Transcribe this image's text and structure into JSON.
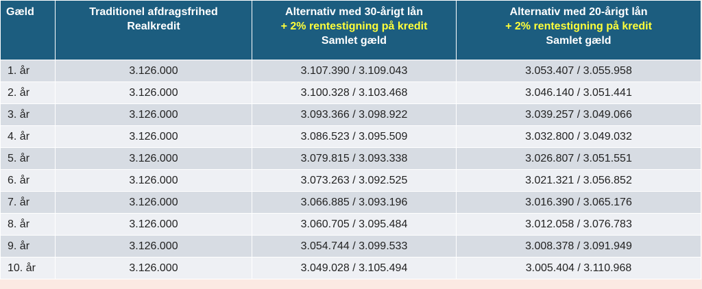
{
  "table": {
    "header": [
      [
        "Gæld"
      ],
      [
        "Traditionel afdragsfrihed",
        "Realkredit"
      ],
      [
        "Alternativ med 30-årigt lån",
        "+ 2% rentestigning på kredit",
        "Samlet gæld"
      ],
      [
        "Alternativ med 20-årigt lån",
        "+ 2% rentestigning på kredit",
        "Samlet gæld"
      ]
    ],
    "rows": [
      [
        "1. år",
        "3.126.000",
        "3.107.390 / 3.109.043",
        "3.053.407 / 3.055.958"
      ],
      [
        "2. år",
        "3.126.000",
        "3.100.328 / 3.103.468",
        "3.046.140 / 3.051.441"
      ],
      [
        "3. år",
        "3.126.000",
        "3.093.366 / 3.098.922",
        "3.039.257 / 3.049.066"
      ],
      [
        "4. år",
        "3.126.000",
        "3.086.523 / 3.095.509",
        "3.032.800 / 3.049.032"
      ],
      [
        "5. år",
        "3.126.000",
        "3.079.815 / 3.093.338",
        "3.026.807 / 3.051.551"
      ],
      [
        "6. år",
        "3.126.000",
        "3.073.263 / 3.092.525",
        "3.021.321 / 3.056.852"
      ],
      [
        "7. år",
        "3.126.000",
        "3.066.885 / 3.093.196",
        "3.016.390 / 3.065.176"
      ],
      [
        "8. år",
        "3.126.000",
        "3.060.705 / 3.095.484",
        "3.012.058 / 3.076.783"
      ],
      [
        "9. år",
        "3.126.000",
        "3.054.744 / 3.099.533",
        "3.008.378 / 3.091.949"
      ],
      [
        "10. år",
        "3.126.000",
        "3.049.028 / 3.105.494",
        "3.005.404 / 3.110.968"
      ]
    ]
  }
}
